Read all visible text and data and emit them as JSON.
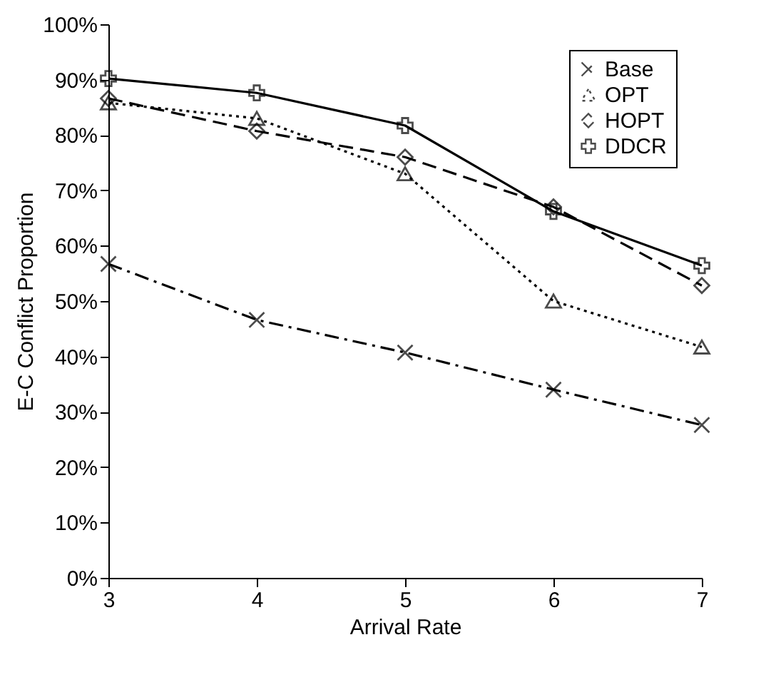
{
  "chart_data": {
    "type": "line",
    "xlabel": "Arrival Rate",
    "ylabel": "E-C Conflict Proportion",
    "x": [
      3,
      4,
      5,
      6,
      7
    ],
    "xlim": [
      3,
      7
    ],
    "xticks": [
      3,
      4,
      5,
      6,
      7
    ],
    "ylim": [
      0,
      100
    ],
    "yticks": [
      {
        "value": 0,
        "label": "0%"
      },
      {
        "value": 10,
        "label": "10%"
      },
      {
        "value": 20,
        "label": "20%"
      },
      {
        "value": 30,
        "label": "30%"
      },
      {
        "value": 40,
        "label": "40%"
      },
      {
        "value": 50,
        "label": "50%"
      },
      {
        "value": 60,
        "label": "60%"
      },
      {
        "value": 70,
        "label": "70%"
      },
      {
        "value": 80,
        "label": "80%"
      },
      {
        "value": 90,
        "label": "90%"
      },
      {
        "value": 100,
        "label": "100%"
      }
    ],
    "grid": false,
    "legend": "top right",
    "series": [
      {
        "name": "Base",
        "color": "#000000",
        "marker": "x",
        "line_style": "dashdot",
        "values": [
          56.7,
          46.6,
          40.7,
          34,
          27.6
        ]
      },
      {
        "name": "OPT",
        "color": "#000000",
        "marker": "triangle",
        "line_style": "dotted",
        "values": [
          85.8,
          83,
          73,
          50,
          41.7
        ]
      },
      {
        "name": "HOPT",
        "color": "#000000",
        "marker": "diamond",
        "line_style": "dashed",
        "values": [
          86.6,
          80.7,
          76,
          67,
          52.8
        ]
      },
      {
        "name": "DDCR",
        "color": "#000000",
        "marker": "cross",
        "line_style": "solid",
        "values": [
          90.2,
          87.6,
          81.7,
          66.2,
          56.4
        ]
      }
    ]
  }
}
